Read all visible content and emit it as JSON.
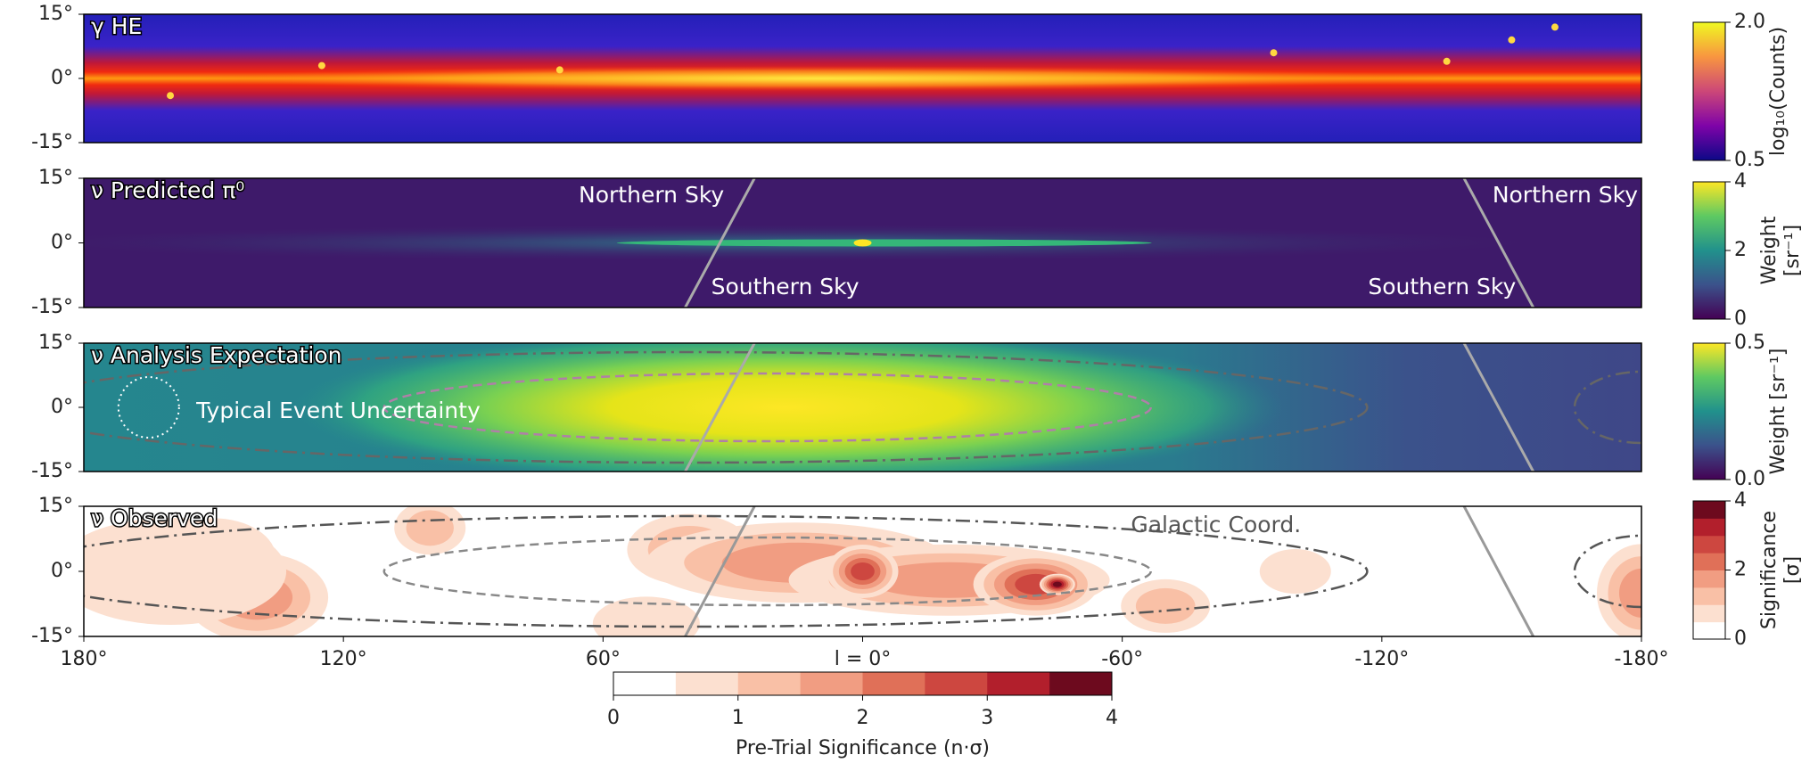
{
  "chart_data": [
    {
      "type": "image",
      "title": "γ HE",
      "colormap": "plasma",
      "xlim": [
        180,
        -180
      ],
      "ylim": [
        -15,
        15
      ],
      "yticks": [
        {
          "value": 15,
          "label": "15°"
        },
        {
          "value": 0,
          "label": "0°"
        },
        {
          "value": -15,
          "label": "-15°"
        }
      ],
      "colorbar": {
        "lim": [
          0.5,
          2
        ],
        "ticks": [
          {
            "value": 2,
            "label": "2.0"
          },
          0.5
        ],
        "label": "log₁₀(Counts)"
      }
    },
    {
      "type": "image",
      "title": "ν Predicted π⁰",
      "colormap": "viridis",
      "xlim": [
        180,
        -180
      ],
      "ylim": [
        -15,
        15
      ],
      "yticks": [
        {
          "value": 15,
          "label": "15°"
        },
        {
          "value": 0,
          "label": "0°"
        },
        {
          "value": -15,
          "label": "-15°"
        }
      ],
      "annotations": [
        "Northern Sky",
        "Southern Sky",
        "Northern Sky",
        "Southern Sky"
      ],
      "colorbar": {
        "lim": [
          0,
          4
        ],
        "ticks": [
          4,
          2,
          0
        ],
        "label": [
          "Weight",
          "[sr⁻¹]"
        ]
      }
    },
    {
      "type": "image",
      "title": "ν Analysis Expectation",
      "colormap": "viridis",
      "xlim": [
        180,
        -180
      ],
      "ylim": [
        -15,
        15
      ],
      "yticks": [
        {
          "value": 15,
          "label": "15°"
        },
        {
          "value": 0,
          "label": "0°"
        },
        {
          "value": -15,
          "label": "-15°"
        }
      ],
      "annotations": [
        "Typical Event Uncertainty"
      ],
      "colorbar": {
        "lim": [
          0,
          0.5
        ],
        "ticks": [
          0.5,
          {
            "value": 0,
            "label": "0.0"
          }
        ],
        "label": "Weight [sr⁻¹]"
      }
    },
    {
      "type": "image",
      "title": "ν Observed",
      "colormap": "reds",
      "xlim": [
        180,
        -180
      ],
      "ylim": [
        -15,
        15
      ],
      "yticks": [
        {
          "value": 15,
          "label": "15°"
        },
        {
          "value": 0,
          "label": "0°"
        },
        {
          "value": -15,
          "label": "-15°"
        }
      ],
      "xticks": [
        {
          "value": 180,
          "label": "180°"
        },
        {
          "value": 120,
          "label": "120°"
        },
        {
          "value": 60,
          "label": "60°"
        },
        {
          "value": 0,
          "label": "l = 0°"
        },
        {
          "value": -60,
          "label": "-60°"
        },
        {
          "value": -120,
          "label": "-120°"
        },
        {
          "value": -180,
          "label": "-180°"
        }
      ],
      "annotations": [
        "Galactic Coord."
      ],
      "colors": [
        "#ffffff",
        "#fce0d0",
        "#f9c0a6",
        "#f19d82",
        "#e07058",
        "#cd4740",
        "#b21f2c",
        "#6d0a1e"
      ],
      "colorbar": {
        "lim": [
          0,
          4
        ],
        "ticks": [
          4,
          2,
          0
        ],
        "label": [
          "Significance",
          "[σ]"
        ]
      },
      "horizontal_colorbar": {
        "lim": [
          0,
          4
        ],
        "ticks": [
          0,
          1,
          2,
          3,
          4
        ],
        "label": "Pre-Trial Significance (n·σ)"
      }
    }
  ]
}
